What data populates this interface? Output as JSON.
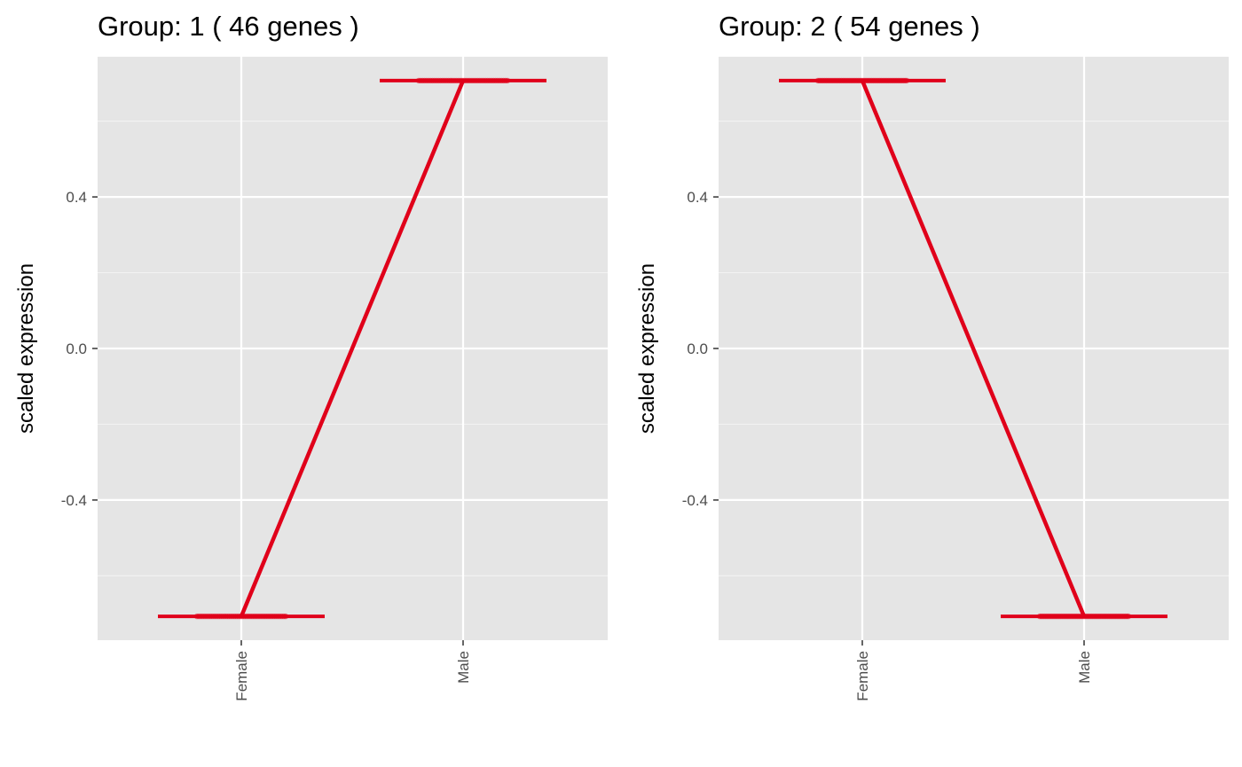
{
  "chart_data": [
    {
      "type": "line",
      "title": "Group: 1 ( 46  genes )",
      "ylabel": "scaled expression",
      "xlabel": "",
      "categories": [
        "Female",
        "Male"
      ],
      "yticks": [
        "0.4",
        "0.0",
        "-0.4"
      ],
      "ytick_values": [
        0.4,
        0.0,
        -0.4
      ],
      "ylim": [
        -0.77,
        0.77
      ],
      "grid": true,
      "mean_values": [
        -0.707,
        0.707
      ],
      "range_values": [
        -0.707,
        0.707
      ],
      "point_count": 46,
      "line_color": "#e0001a",
      "background": "#e5e5e5"
    },
    {
      "type": "line",
      "title": "Group: 2 ( 54  genes )",
      "ylabel": "scaled expression",
      "xlabel": "",
      "categories": [
        "Female",
        "Male"
      ],
      "yticks": [
        "0.4",
        "0.0",
        "-0.4"
      ],
      "ytick_values": [
        0.4,
        0.0,
        -0.4
      ],
      "ylim": [
        -0.77,
        0.77
      ],
      "grid": true,
      "mean_values": [
        0.707,
        -0.707
      ],
      "range_values": [
        0.707,
        -0.707
      ],
      "point_count": 54,
      "line_color": "#e0001a",
      "background": "#e5e5e5"
    }
  ]
}
